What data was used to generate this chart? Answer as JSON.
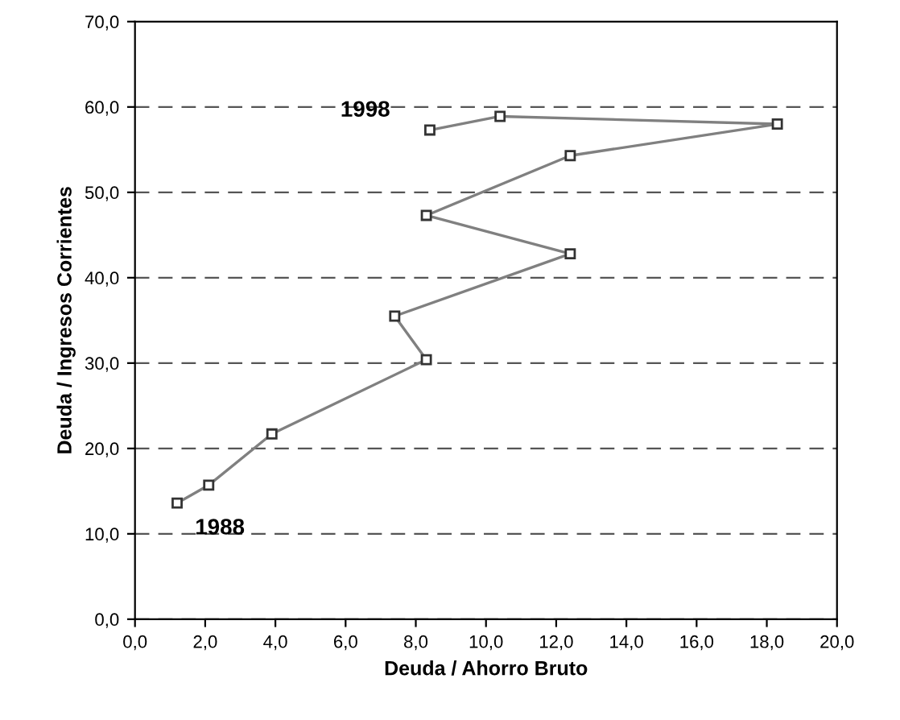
{
  "chart_data": {
    "type": "line",
    "xlabel": "Deuda / Ahorro Bruto",
    "ylabel": "Deuda / Ingresos Corrientes",
    "series": [
      {
        "color": "#808080",
        "x": [
          1.2,
          2.1,
          3.9,
          8.3,
          7.4,
          12.4,
          8.3,
          12.4,
          18.3,
          10.4,
          8.4
        ],
        "values": [
          13.6,
          15.7,
          21.7,
          30.4,
          35.5,
          42.8,
          47.3,
          54.3,
          58.0,
          58.9,
          57.3
        ]
      }
    ],
    "marker": "square",
    "line_style": "solid",
    "annotations": [
      {
        "text": "1988",
        "x": 1.2,
        "y": 13.6
      },
      {
        "text": "1998",
        "x": 8.4,
        "y": 57.3
      }
    ],
    "xlim": [
      0,
      20
    ],
    "ylim": [
      0,
      70
    ],
    "xticks": [
      {
        "value": 0,
        "label": "0,0"
      },
      {
        "value": 2,
        "label": "2,0"
      },
      {
        "value": 4,
        "label": "4,0"
      },
      {
        "value": 6,
        "label": "6,0"
      },
      {
        "value": 8,
        "label": "8,0"
      },
      {
        "value": 10,
        "label": "10,0"
      },
      {
        "value": 12,
        "label": "12,0"
      },
      {
        "value": 14,
        "label": "14,0"
      },
      {
        "value": 16,
        "label": "16,0"
      },
      {
        "value": 18,
        "label": "18,0"
      },
      {
        "value": 20,
        "label": "20,0"
      }
    ],
    "yticks": [
      {
        "value": 0,
        "label": "0,0"
      },
      {
        "value": 10,
        "label": "10,0"
      },
      {
        "value": 20,
        "label": "20,0"
      },
      {
        "value": 30,
        "label": "30,0"
      },
      {
        "value": 40,
        "label": "40,0"
      },
      {
        "value": 50,
        "label": "50,0"
      },
      {
        "value": 60,
        "label": "60,0"
      },
      {
        "value": 70,
        "label": "70,0"
      }
    ],
    "grid": "y",
    "legend": false
  }
}
